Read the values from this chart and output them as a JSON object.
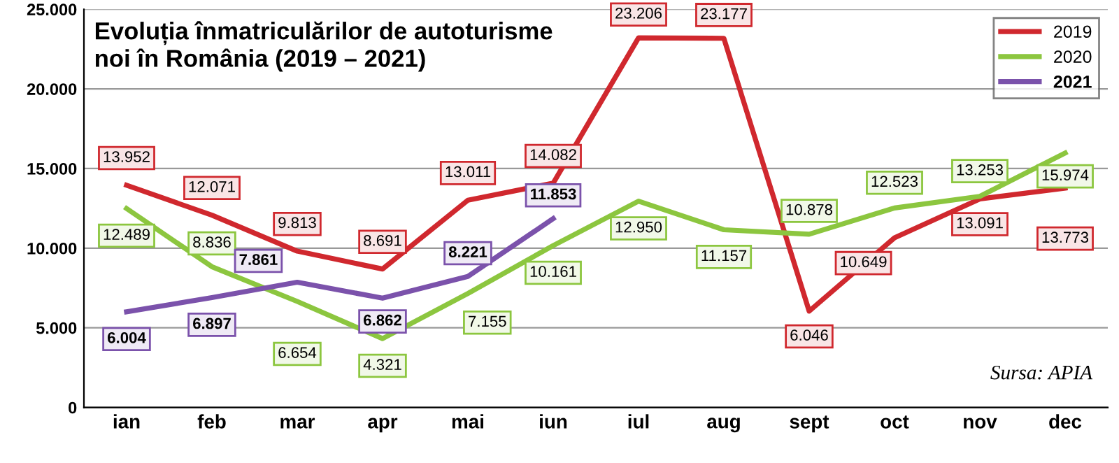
{
  "chart_data": {
    "type": "line",
    "title": "Evoluția înmatriculărilor de autoturisme\nnoi în România (2019 – 2021)",
    "categories": [
      "ian",
      "feb",
      "mar",
      "apr",
      "mai",
      "iun",
      "iul",
      "aug",
      "sept",
      "oct",
      "nov",
      "dec"
    ],
    "series": [
      {
        "name": "2019",
        "color": "#d0282e",
        "values": [
          13952,
          12071,
          9813,
          8691,
          13011,
          14082,
          23206,
          23177,
          6046,
          10649,
          13091,
          13773
        ],
        "value_labels": [
          "13.952",
          "12.071",
          "9.813",
          "8.691",
          "13.011",
          "14.082",
          "23.206",
          "23.177",
          "6.046",
          "10.649",
          "13.091",
          "13.773"
        ]
      },
      {
        "name": "2020",
        "color": "#8cc63f",
        "values": [
          12489,
          8836,
          6654,
          4321,
          7155,
          10161,
          12950,
          11157,
          10878,
          12523,
          13253,
          15974
        ],
        "value_labels": [
          "12.489",
          "8.836",
          "6.654",
          "4.321",
          "7.155",
          "10.161",
          "12.950",
          "11.157",
          "10.878",
          "12.523",
          "13.253",
          "15.974"
        ]
      },
      {
        "name": "2021",
        "color": "#7b52ab",
        "values": [
          6004,
          6897,
          7861,
          6862,
          8221,
          11853,
          null,
          null,
          null,
          null,
          null,
          null
        ],
        "value_labels": [
          "6.004",
          "6.897",
          "7.861",
          "6.862",
          "8.221",
          "11.853",
          null,
          null,
          null,
          null,
          null,
          null
        ]
      }
    ],
    "ylim": [
      0,
      25000
    ],
    "yticks": [
      {
        "value": 0,
        "label": "0"
      },
      {
        "value": 5000,
        "label": "5.000"
      },
      {
        "value": 10000,
        "label": "10.000"
      },
      {
        "value": 15000,
        "label": "15.000"
      },
      {
        "value": 20000,
        "label": "20.000"
      },
      {
        "value": 25000,
        "label": "25.000"
      }
    ],
    "grid": "y",
    "legend": "top right",
    "marker": "none",
    "line_style": "solid",
    "annotations": [
      "Sursa: APIA"
    ]
  }
}
